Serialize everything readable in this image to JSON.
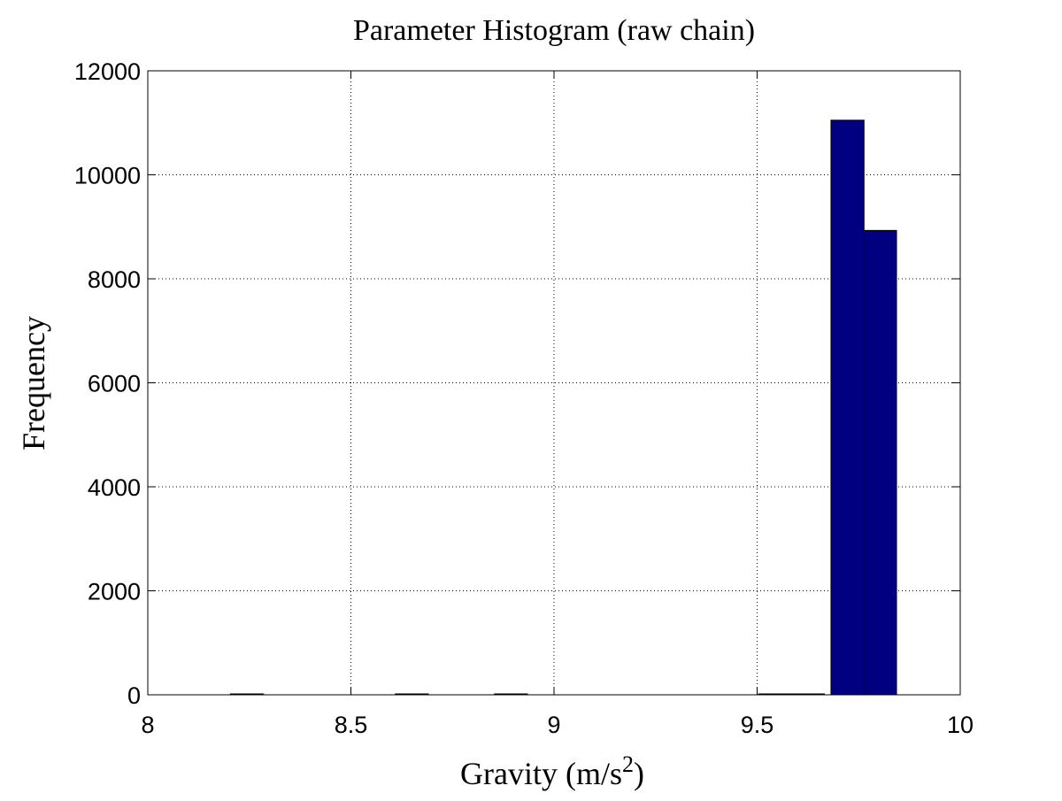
{
  "chart_data": {
    "type": "bar",
    "title": "Parameter Histogram (raw chain)",
    "xlabel": "Gravity (m/s",
    "xlabel_sup": "2",
    "xlabel_suffix": ")",
    "ylabel": "Frequency",
    "xlim": [
      8,
      10
    ],
    "ylim": [
      0,
      12000
    ],
    "xticks": [
      "8",
      "8.5",
      "9",
      "9.5",
      "10"
    ],
    "yticks": [
      "0",
      "2000",
      "4000",
      "6000",
      "8000",
      "10000",
      "12000"
    ],
    "grid": true,
    "bin_width": 0.0813,
    "bins": [
      {
        "x": 8.244,
        "count": 1
      },
      {
        "x": 8.65,
        "count": 1
      },
      {
        "x": 8.894,
        "count": 1
      },
      {
        "x": 9.544,
        "count": 3
      },
      {
        "x": 9.625,
        "count": 6
      },
      {
        "x": 9.7225,
        "count": 11050
      },
      {
        "x": 9.8025,
        "count": 8930
      }
    ],
    "colors": {
      "bar_fill": "#000080",
      "bar_edge": "#000000"
    }
  }
}
